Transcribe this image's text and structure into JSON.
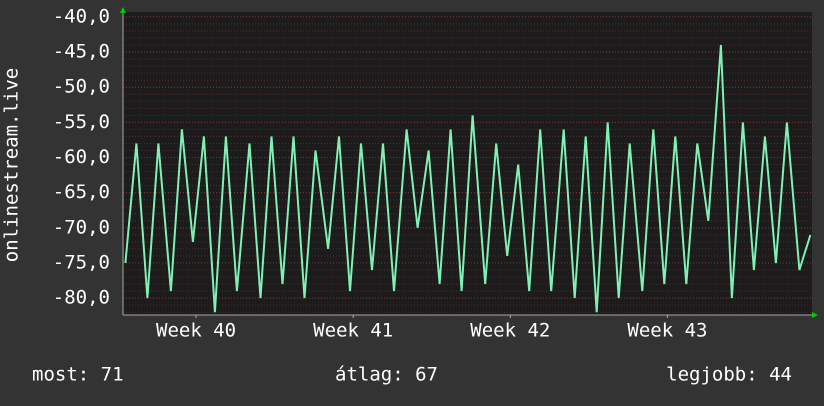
{
  "chart_data": {
    "type": "line",
    "y_label": "onlinestream.live",
    "x": [
      39.55,
      39.62,
      39.69,
      39.76,
      39.84,
      39.91,
      39.98,
      40.05,
      40.12,
      40.19,
      40.26,
      40.34,
      40.41,
      40.48,
      40.55,
      40.62,
      40.69,
      40.76,
      40.84,
      40.91,
      40.98,
      41.05,
      41.12,
      41.19,
      41.26,
      41.34,
      41.41,
      41.48,
      41.55,
      41.62,
      41.69,
      41.76,
      41.84,
      41.91,
      41.98,
      42.05,
      42.12,
      42.19,
      42.26,
      42.34,
      42.41,
      42.48,
      42.55,
      42.62,
      42.69,
      42.76,
      42.84,
      42.91,
      42.98,
      43.05,
      43.12,
      43.19,
      43.26,
      43.34,
      43.41,
      43.48,
      43.55,
      43.62,
      43.69,
      43.76,
      43.84,
      43.91
    ],
    "series": [
      {
        "color": "#80f0b4",
        "values": [
          -75,
          -58,
          -80,
          -58,
          -79,
          -56,
          -72,
          -57,
          -82,
          -57,
          -79,
          -58,
          -80,
          -57,
          -78,
          -57,
          -80,
          -59,
          -73,
          -57,
          -79,
          -58,
          -76,
          -58,
          -79,
          -56,
          -70,
          -59,
          -78,
          -56,
          -79,
          -54,
          -78,
          -58,
          -74,
          -61,
          -79,
          -56,
          -79,
          -56,
          -80,
          -57,
          -82,
          -55,
          -80,
          -58,
          -79,
          -56,
          -78,
          -57,
          -78,
          -58,
          -69,
          -44,
          -80,
          -55,
          -76,
          -57,
          -75,
          -55,
          -76,
          -71
        ]
      }
    ],
    "xlim": [
      39.535,
      43.92
    ],
    "xticks": [
      {
        "value": 40,
        "label": "Week 40"
      },
      {
        "value": 41,
        "label": "Week 41"
      },
      {
        "value": 42,
        "label": "Week 42"
      },
      {
        "value": 43,
        "label": "Week 43"
      }
    ],
    "ylim": [
      -82.4,
      -39.3
    ],
    "yticks": [
      {
        "value": -40,
        "label": "-40,0"
      },
      {
        "value": -45,
        "label": "-45,0"
      },
      {
        "value": -50,
        "label": "-50,0"
      },
      {
        "value": -55,
        "label": "-55,0"
      },
      {
        "value": -60,
        "label": "-60,0"
      },
      {
        "value": -65,
        "label": "-65,0"
      },
      {
        "value": -70,
        "label": "-70,0"
      },
      {
        "value": -75,
        "label": "-75,0"
      },
      {
        "value": -80,
        "label": "-80,0"
      }
    ],
    "grid": true,
    "footer": [
      "most: 71",
      "átlag: 67",
      "legjobb: 44"
    ]
  }
}
